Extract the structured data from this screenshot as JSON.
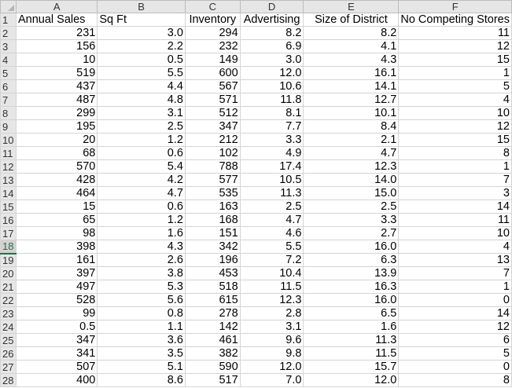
{
  "columns": [
    "A",
    "B",
    "C",
    "D",
    "E",
    "F"
  ],
  "headers": [
    "Annual Sales",
    "Sq Ft",
    "Inventory",
    "Advertising",
    "Size of District",
    "No Competing Stores"
  ],
  "selected_row": 18,
  "rows": [
    [
      "231",
      "3.0",
      "294",
      "8.2",
      "8.2",
      "11"
    ],
    [
      "156",
      "2.2",
      "232",
      "6.9",
      "4.1",
      "12"
    ],
    [
      "10",
      "0.5",
      "149",
      "3.0",
      "4.3",
      "15"
    ],
    [
      "519",
      "5.5",
      "600",
      "12.0",
      "16.1",
      "1"
    ],
    [
      "437",
      "4.4",
      "567",
      "10.6",
      "14.1",
      "5"
    ],
    [
      "487",
      "4.8",
      "571",
      "11.8",
      "12.7",
      "4"
    ],
    [
      "299",
      "3.1",
      "512",
      "8.1",
      "10.1",
      "10"
    ],
    [
      "195",
      "2.5",
      "347",
      "7.7",
      "8.4",
      "12"
    ],
    [
      "20",
      "1.2",
      "212",
      "3.3",
      "2.1",
      "15"
    ],
    [
      "68",
      "0.6",
      "102",
      "4.9",
      "4.7",
      "8"
    ],
    [
      "570",
      "5.4",
      "788",
      "17.4",
      "12.3",
      "1"
    ],
    [
      "428",
      "4.2",
      "577",
      "10.5",
      "14.0",
      "7"
    ],
    [
      "464",
      "4.7",
      "535",
      "11.3",
      "15.0",
      "3"
    ],
    [
      "15",
      "0.6",
      "163",
      "2.5",
      "2.5",
      "14"
    ],
    [
      "65",
      "1.2",
      "168",
      "4.7",
      "3.3",
      "11"
    ],
    [
      "98",
      "1.6",
      "151",
      "4.6",
      "2.7",
      "10"
    ],
    [
      "398",
      "4.3",
      "342",
      "5.5",
      "16.0",
      "4"
    ],
    [
      "161",
      "2.6",
      "196",
      "7.2",
      "6.3",
      "13"
    ],
    [
      "397",
      "3.8",
      "453",
      "10.4",
      "13.9",
      "7"
    ],
    [
      "497",
      "5.3",
      "518",
      "11.5",
      "16.3",
      "1"
    ],
    [
      "528",
      "5.6",
      "615",
      "12.3",
      "16.0",
      "0"
    ],
    [
      "99",
      "0.8",
      "278",
      "2.8",
      "6.5",
      "14"
    ],
    [
      "0.5",
      "1.1",
      "142",
      "3.1",
      "1.6",
      "12"
    ],
    [
      "347",
      "3.6",
      "461",
      "9.6",
      "11.3",
      "6"
    ],
    [
      "341",
      "3.5",
      "382",
      "9.8",
      "11.5",
      "5"
    ],
    [
      "507",
      "5.1",
      "590",
      "12.0",
      "15.7",
      "0"
    ],
    [
      "400",
      "8.6",
      "517",
      "7.0",
      "12.0",
      "8"
    ]
  ]
}
